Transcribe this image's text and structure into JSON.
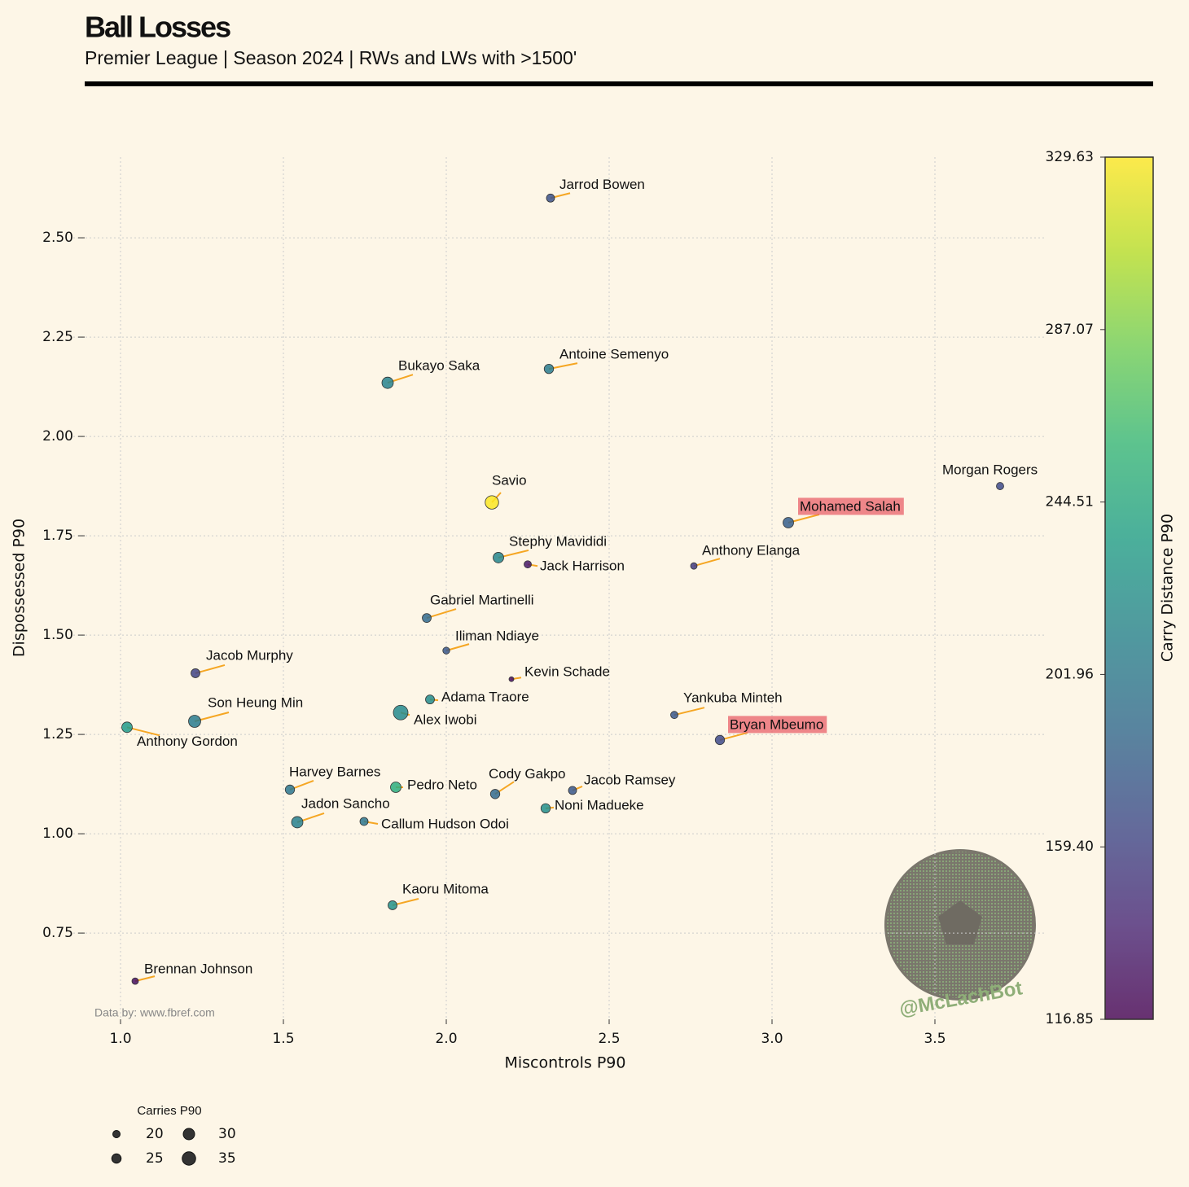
{
  "chart_data": {
    "type": "scatter",
    "title": "Ball Losses",
    "subtitle": "Premier League | Season 2024 | RWs and LWs with >1500'",
    "x_label": "Miscontrols P90",
    "y_label": "Dispossessed P90",
    "colorbar_label": "Carry Distance P90",
    "size_legend_title": "Carries P90",
    "size_legend": [
      20,
      25,
      30,
      35
    ],
    "source": "Data by: www.fbref.com",
    "watermark": "@McLachBot",
    "colormap": "viridis",
    "leader_color": "#f5a623",
    "highlight_color": "#e8606a",
    "grid": true,
    "xlim": [
      0.855,
      3.835
    ],
    "ylim": [
      0.533,
      2.703
    ],
    "clim": [
      116.85,
      329.63
    ],
    "xticks": [
      {
        "value": 1,
        "label": "1.0"
      },
      1.5,
      {
        "value": 2,
        "label": "2.0"
      },
      2.5,
      {
        "value": 3,
        "label": "3.0"
      },
      3.5
    ],
    "yticks": [
      {
        "value": 0.75,
        "label": "0.75"
      },
      1.25,
      {
        "value": 1,
        "label": "1.00"
      },
      1.75,
      {
        "value": 1.5,
        "label": "1.50"
      },
      2.25,
      {
        "value": 2,
        "label": "2.00"
      },
      {
        "value": 2.5,
        "label": "2.50"
      }
    ],
    "cticks": [
      116.85,
      {
        "value": 159.4,
        "label": "159.40"
      },
      201.96,
      244.51,
      287.07,
      329.63
    ],
    "points": [
      {
        "name": "Jarrod Bowen",
        "x": 2.32,
        "y": 2.6,
        "carry_distance": 170,
        "carries": 22
      },
      {
        "name": "Antoine Semenyo",
        "x": 2.315,
        "y": 2.17,
        "carry_distance": 205,
        "carries": 25
      },
      {
        "name": "Bukayo Saka",
        "x": 1.82,
        "y": 2.135,
        "carry_distance": 212,
        "carries": 30
      },
      {
        "name": "Savio",
        "x": 2.14,
        "y": 1.834,
        "carry_distance": 329,
        "carries": 35
      },
      {
        "name": "Morgan Rogers",
        "x": 3.7,
        "y": 1.875,
        "carry_distance": 165,
        "carries": 20
      },
      {
        "name": "Mohamed Salah",
        "x": 3.05,
        "y": 1.783,
        "carry_distance": 180,
        "carries": 28,
        "highlight": true
      },
      {
        "name": "Stephy Mavididi",
        "x": 2.16,
        "y": 1.695,
        "carry_distance": 215,
        "carries": 28
      },
      {
        "name": "Jack Harrison",
        "x": 2.25,
        "y": 1.678,
        "carry_distance": 130,
        "carries": 20
      },
      {
        "name": "Anthony Elanga",
        "x": 2.76,
        "y": 1.674,
        "carry_distance": 155,
        "carries": 18
      },
      {
        "name": "Gabriel Martinelli",
        "x": 1.94,
        "y": 1.543,
        "carry_distance": 190,
        "carries": 24
      },
      {
        "name": "Iliman Ndiaye",
        "x": 2.0,
        "y": 1.461,
        "carry_distance": 175,
        "carries": 19
      },
      {
        "name": "Jacob Murphy",
        "x": 1.23,
        "y": 1.404,
        "carry_distance": 160,
        "carries": 24
      },
      {
        "name": "Kevin Schade",
        "x": 2.2,
        "y": 1.389,
        "carry_distance": 125,
        "carries": 14
      },
      {
        "name": "Adama Traore",
        "x": 1.95,
        "y": 1.338,
        "carry_distance": 220,
        "carries": 24
      },
      {
        "name": "Alex Iwobi",
        "x": 1.86,
        "y": 1.305,
        "carry_distance": 218,
        "carries": 38
      },
      {
        "name": "Son Heung Min",
        "x": 1.2275,
        "y": 1.283,
        "carry_distance": 205,
        "carries": 32
      },
      {
        "name": "Anthony Gordon",
        "x": 1.02,
        "y": 1.268,
        "carry_distance": 232,
        "carries": 28
      },
      {
        "name": "Yankuba Minteh",
        "x": 2.7,
        "y": 1.299,
        "carry_distance": 175,
        "carries": 20
      },
      {
        "name": "Bryan Mbeumo",
        "x": 2.84,
        "y": 1.236,
        "carry_distance": 165,
        "carries": 25,
        "highlight": true
      },
      {
        "name": "Harvey Barnes",
        "x": 1.52,
        "y": 1.111,
        "carry_distance": 200,
        "carries": 25
      },
      {
        "name": "Pedro Neto",
        "x": 1.845,
        "y": 1.117,
        "carry_distance": 250,
        "carries": 28
      },
      {
        "name": "Cody Gakpo",
        "x": 2.15,
        "y": 1.1,
        "carry_distance": 190,
        "carries": 25
      },
      {
        "name": "Jacob Ramsey",
        "x": 2.3875,
        "y": 1.109,
        "carry_distance": 175,
        "carries": 22
      },
      {
        "name": "Noni Madueke",
        "x": 2.305,
        "y": 1.064,
        "carry_distance": 222,
        "carries": 25
      },
      {
        "name": "Jadon Sancho",
        "x": 1.5425,
        "y": 1.029,
        "carry_distance": 210,
        "carries": 30
      },
      {
        "name": "Callum Hudson Odoi",
        "x": 1.7475,
        "y": 1.031,
        "carry_distance": 200,
        "carries": 22
      },
      {
        "name": "Kaoru Mitoma",
        "x": 1.835,
        "y": 0.82,
        "carry_distance": 225,
        "carries": 24
      },
      {
        "name": "Brennan Johnson",
        "x": 1.045,
        "y": 0.629,
        "carry_distance": 125,
        "carries": 18
      }
    ]
  }
}
